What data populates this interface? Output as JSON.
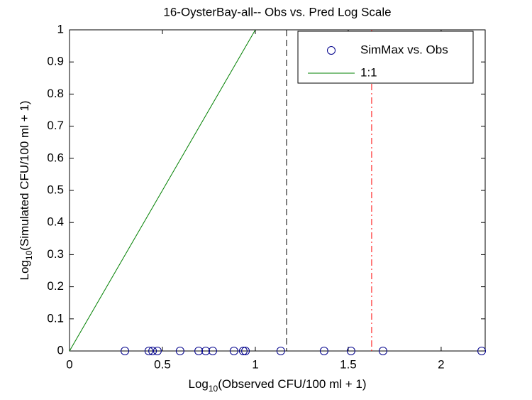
{
  "chart_data": {
    "type": "scatter",
    "title": "16-OysterBay-all-- Obs vs. Pred Log Scale",
    "xlabel": [
      "Log",
      "10",
      "(Observed CFU/100 ml + 1)"
    ],
    "ylabel": [
      "Log",
      "10",
      "(Simulated CFU/100 ml + 1)"
    ],
    "xlim": [
      0,
      2.237
    ],
    "ylim": [
      0,
      1
    ],
    "xticks": [
      0,
      0.5,
      1,
      1.5,
      2
    ],
    "yticks": [
      0,
      0.1,
      0.2,
      0.3,
      0.4,
      0.5,
      0.6,
      0.7,
      0.8,
      0.9,
      1
    ],
    "grid": false,
    "legend": "upper right",
    "series": [
      {
        "name": "SimMax vs. Obs",
        "color": "#00008b",
        "marker": "circle",
        "x": [
          0.298,
          0.427,
          0.447,
          0.473,
          0.595,
          0.695,
          0.733,
          0.771,
          0.885,
          0.935,
          0.947,
          1.137,
          1.37,
          1.515,
          1.687,
          2.218
        ],
        "values": [
          0,
          0,
          0,
          0,
          0,
          0,
          0,
          0,
          0,
          0,
          0,
          0,
          0,
          0,
          0,
          0
        ]
      },
      {
        "name": "1:1",
        "color": "#008000",
        "marker": "line",
        "x": [
          0,
          1
        ],
        "values": [
          0,
          1
        ]
      }
    ],
    "vlines": [
      {
        "x": 1.168,
        "color": "#000000",
        "style": "dashed"
      },
      {
        "x": 1.626,
        "color": "#ff0000",
        "style": "dashdot"
      }
    ]
  }
}
